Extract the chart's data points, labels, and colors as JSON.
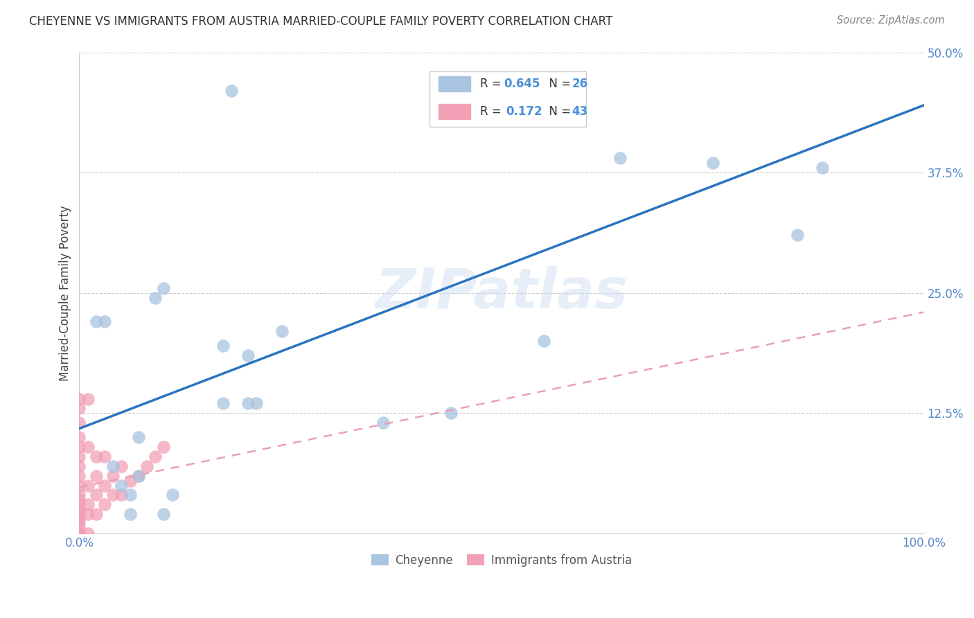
{
  "title": "CHEYENNE VS IMMIGRANTS FROM AUSTRIA MARRIED-COUPLE FAMILY POVERTY CORRELATION CHART",
  "source": "Source: ZipAtlas.com",
  "ylabel": "Married-Couple Family Poverty",
  "xlim": [
    0,
    1.0
  ],
  "ylim": [
    0,
    0.5
  ],
  "xtick_positions": [
    0.0,
    0.25,
    0.5,
    0.75,
    1.0
  ],
  "xtick_labels": [
    "0.0%",
    "",
    "",
    "",
    "100.0%"
  ],
  "ytick_positions": [
    0.0,
    0.125,
    0.25,
    0.375,
    0.5
  ],
  "ytick_labels": [
    "",
    "12.5%",
    "25.0%",
    "37.5%",
    "50.0%"
  ],
  "cheyenne_color": "#a8c4e0",
  "austria_color": "#f2a0b5",
  "line1_color": "#2a74c0",
  "line2_color": "#e8a0b8",
  "watermark": "ZIPatlas",
  "background_color": "#ffffff",
  "cheyenne_x": [
    0.02,
    0.03,
    0.04,
    0.05,
    0.06,
    0.06,
    0.07,
    0.07,
    0.09,
    0.1,
    0.1,
    0.17,
    0.17,
    0.2,
    0.2,
    0.24,
    0.36,
    0.44,
    0.55,
    0.64,
    0.75,
    0.85,
    0.88,
    0.18,
    0.11,
    0.21
  ],
  "cheyenne_y": [
    0.22,
    0.22,
    0.07,
    0.05,
    0.04,
    0.02,
    0.1,
    0.06,
    0.245,
    0.255,
    0.02,
    0.195,
    0.135,
    0.185,
    0.135,
    0.21,
    0.115,
    0.125,
    0.2,
    0.39,
    0.385,
    0.31,
    0.38,
    0.46,
    0.04,
    0.135
  ],
  "austria_x": [
    0.0,
    0.0,
    0.0,
    0.0,
    0.0,
    0.0,
    0.0,
    0.0,
    0.0,
    0.0,
    0.0,
    0.0,
    0.0,
    0.0,
    0.0,
    0.0,
    0.0,
    0.0,
    0.0,
    0.0,
    0.0,
    0.01,
    0.01,
    0.01,
    0.01,
    0.01,
    0.01,
    0.02,
    0.02,
    0.02,
    0.02,
    0.03,
    0.03,
    0.03,
    0.04,
    0.04,
    0.05,
    0.05,
    0.06,
    0.07,
    0.08,
    0.09,
    0.1
  ],
  "austria_y": [
    0.0,
    0.0,
    0.005,
    0.01,
    0.015,
    0.02,
    0.025,
    0.03,
    0.04,
    0.05,
    0.06,
    0.07,
    0.08,
    0.09,
    0.1,
    0.115,
    0.13,
    0.14,
    0.015,
    0.025,
    0.035,
    0.0,
    0.02,
    0.03,
    0.05,
    0.09,
    0.14,
    0.02,
    0.04,
    0.06,
    0.08,
    0.03,
    0.05,
    0.08,
    0.04,
    0.06,
    0.04,
    0.07,
    0.055,
    0.06,
    0.07,
    0.08,
    0.09
  ],
  "cheyenne_line_x0": 0.0,
  "cheyenne_line_y0": 0.109,
  "cheyenne_line_x1": 1.0,
  "cheyenne_line_y1": 0.445,
  "austria_line_x0": 0.0,
  "austria_line_y0": 0.048,
  "austria_line_x1": 1.0,
  "austria_line_y1": 0.23,
  "tick_color": "#5588cc",
  "title_color": "#333333",
  "source_color": "#888888",
  "ylabel_color": "#444444"
}
